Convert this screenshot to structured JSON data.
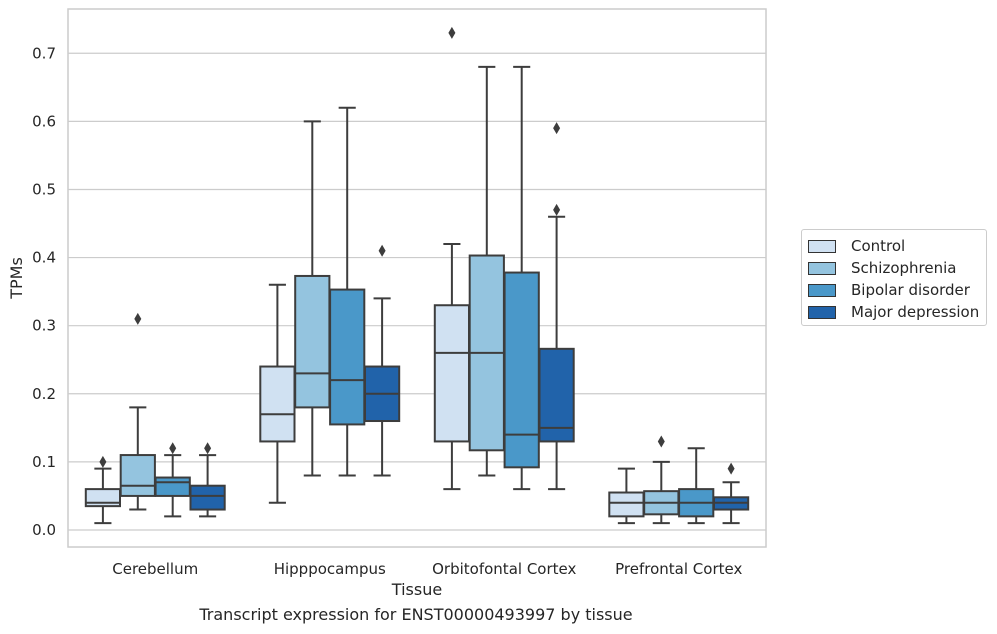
{
  "chart_data": {
    "type": "box",
    "title": "",
    "caption": "Transcript expression for ENST00000493997 by tissue",
    "xlabel": "Tissue",
    "ylabel": "TPMs",
    "ylim": [
      -0.025,
      0.765
    ],
    "yticks": [
      "0.0",
      "0.1",
      "0.2",
      "0.3",
      "0.4",
      "0.5",
      "0.6",
      "0.7"
    ],
    "grid": true,
    "legend_position": "right",
    "categories": [
      "Cerebellum",
      "Hipppocampus",
      "Orbitofontal Cortex",
      "Prefrontal Cortex"
    ],
    "series": [
      {
        "name": "Control",
        "color": "#d0e1f2",
        "boxes": [
          {
            "whislo": 0.01,
            "q1": 0.035,
            "med": 0.04,
            "q3": 0.06,
            "whishi": 0.09,
            "fliers": [
              0.1
            ]
          },
          {
            "whislo": 0.04,
            "q1": 0.13,
            "med": 0.17,
            "q3": 0.24,
            "whishi": 0.36,
            "fliers": []
          },
          {
            "whislo": 0.06,
            "q1": 0.13,
            "med": 0.26,
            "q3": 0.33,
            "whishi": 0.42,
            "fliers": [
              0.73
            ]
          },
          {
            "whislo": 0.01,
            "q1": 0.02,
            "med": 0.04,
            "q3": 0.055,
            "whishi": 0.09,
            "fliers": []
          }
        ]
      },
      {
        "name": "Schizophrenia",
        "color": "#94c4df",
        "boxes": [
          {
            "whislo": 0.03,
            "q1": 0.05,
            "med": 0.065,
            "q3": 0.11,
            "whishi": 0.18,
            "fliers": [
              0.31
            ]
          },
          {
            "whislo": 0.08,
            "q1": 0.18,
            "med": 0.23,
            "q3": 0.373,
            "whishi": 0.6,
            "fliers": []
          },
          {
            "whislo": 0.08,
            "q1": 0.117,
            "med": 0.26,
            "q3": 0.403,
            "whishi": 0.68,
            "fliers": []
          },
          {
            "whislo": 0.01,
            "q1": 0.023,
            "med": 0.04,
            "q3": 0.057,
            "whishi": 0.1,
            "fliers": [
              0.13
            ]
          }
        ]
      },
      {
        "name": "Bipolar disorder",
        "color": "#4a98c9",
        "boxes": [
          {
            "whislo": 0.02,
            "q1": 0.05,
            "med": 0.07,
            "q3": 0.077,
            "whishi": 0.11,
            "fliers": [
              0.12
            ]
          },
          {
            "whislo": 0.08,
            "q1": 0.155,
            "med": 0.22,
            "q3": 0.353,
            "whishi": 0.62,
            "fliers": []
          },
          {
            "whislo": 0.06,
            "q1": 0.092,
            "med": 0.14,
            "q3": 0.378,
            "whishi": 0.68,
            "fliers": []
          },
          {
            "whislo": 0.01,
            "q1": 0.02,
            "med": 0.04,
            "q3": 0.06,
            "whishi": 0.12,
            "fliers": []
          }
        ]
      },
      {
        "name": "Major depression",
        "color": "#2163aa",
        "boxes": [
          {
            "whislo": 0.02,
            "q1": 0.03,
            "med": 0.05,
            "q3": 0.065,
            "whishi": 0.11,
            "fliers": [
              0.12
            ]
          },
          {
            "whislo": 0.08,
            "q1": 0.16,
            "med": 0.2,
            "q3": 0.24,
            "whishi": 0.34,
            "fliers": [
              0.41
            ]
          },
          {
            "whislo": 0.06,
            "q1": 0.13,
            "med": 0.15,
            "q3": 0.266,
            "whishi": 0.46,
            "fliers": [
              0.47,
              0.59
            ]
          },
          {
            "whislo": 0.01,
            "q1": 0.03,
            "med": 0.04,
            "q3": 0.048,
            "whishi": 0.07,
            "fliers": [
              0.09
            ]
          }
        ]
      }
    ]
  }
}
